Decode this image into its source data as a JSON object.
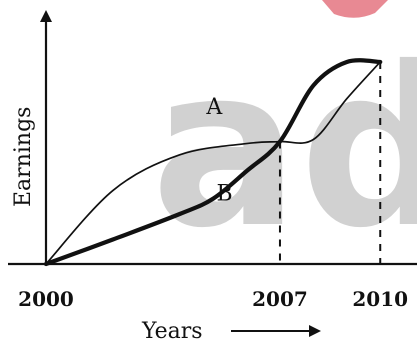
{
  "chart_data": {
    "type": "line",
    "title": "",
    "xlabel": "Years",
    "ylabel": "Earnings",
    "x": [
      2000,
      2007,
      2010
    ],
    "categories": [
      "2000",
      "2007",
      "2010"
    ],
    "xlim": [
      2000,
      2011.1
    ],
    "ylim": [
      0,
      2.45
    ],
    "series": [
      {
        "name": "A",
        "style": "thin",
        "color": "#111111",
        "points": [
          [
            2000,
            0
          ],
          [
            2002,
            0.72
          ],
          [
            2004,
            1.07
          ],
          [
            2006,
            1.18
          ],
          [
            2007,
            1.2
          ],
          [
            2008,
            1.22
          ],
          [
            2009,
            1.62
          ],
          [
            2010,
            1.98
          ]
        ]
      },
      {
        "name": "B",
        "style": "thick",
        "color": "#111111",
        "points": [
          [
            2000,
            0
          ],
          [
            2002,
            0.24
          ],
          [
            2004,
            0.49
          ],
          [
            2005,
            0.64
          ],
          [
            2006,
            0.91
          ],
          [
            2007,
            1.2
          ],
          [
            2008,
            1.75
          ],
          [
            2009,
            1.98
          ],
          [
            2010,
            1.98
          ]
        ]
      }
    ],
    "markers": [
      {
        "x": 2007,
        "label": "2007"
      },
      {
        "x": 2010,
        "label": "2010"
      }
    ],
    "grid": false,
    "legend": "none"
  },
  "watermark": {
    "text": "ado",
    "color": "#c8c8c8",
    "accent_color": "#e7838d"
  }
}
